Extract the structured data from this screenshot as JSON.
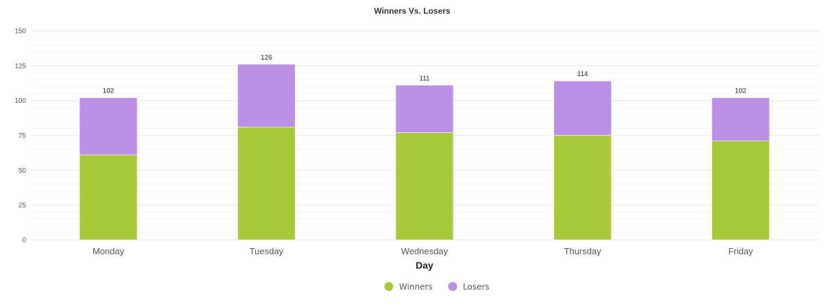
{
  "chart_data": {
    "type": "bar",
    "stacked": true,
    "title": "Winners Vs. Losers",
    "xlabel": "Day",
    "ylabel": "",
    "ylim": [
      0,
      150
    ],
    "yticks": [
      0,
      25,
      50,
      75,
      100,
      125,
      150
    ],
    "grid": true,
    "legend_position": "bottom",
    "categories": [
      "Monday",
      "Tuesday",
      "Wednesday",
      "Thursday",
      "Friday"
    ],
    "series": [
      {
        "name": "Winners",
        "color": "#a8c93a",
        "values": [
          61,
          81,
          77,
          75,
          71
        ]
      },
      {
        "name": "Losers",
        "color": "#bb8fe6",
        "values": [
          41,
          45,
          34,
          39,
          31
        ]
      }
    ],
    "totals": [
      "102",
      "126",
      "111",
      "114",
      "102"
    ]
  }
}
